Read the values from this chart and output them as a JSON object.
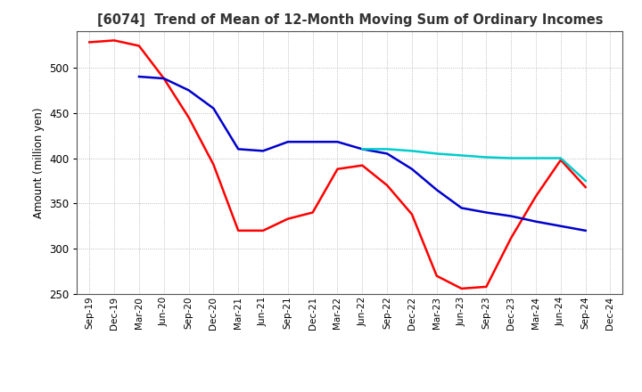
{
  "title": "[6074]  Trend of Mean of 12-Month Moving Sum of Ordinary Incomes",
  "ylabel": "Amount (million yen)",
  "ylim": [
    250,
    540
  ],
  "yticks": [
    250,
    300,
    350,
    400,
    450,
    500
  ],
  "bg_color": "#ffffff",
  "grid_color": "#aaaaaa",
  "line_colors": {
    "3Y": "#ff0000",
    "5Y": "#0000cc",
    "7Y": "#00cccc",
    "10Y": "#008000"
  },
  "x_labels": [
    "Sep-19",
    "Dec-19",
    "Mar-20",
    "Jun-20",
    "Sep-20",
    "Dec-20",
    "Mar-21",
    "Jun-21",
    "Sep-21",
    "Dec-21",
    "Mar-22",
    "Jun-22",
    "Sep-22",
    "Dec-22",
    "Mar-23",
    "Jun-23",
    "Sep-23",
    "Dec-23",
    "Mar-24",
    "Jun-24",
    "Sep-24",
    "Dec-24"
  ],
  "data_3Y": [
    528,
    530,
    524,
    488,
    445,
    393,
    320,
    320,
    333,
    340,
    388,
    392,
    370,
    338,
    270,
    256,
    258,
    312,
    358,
    398,
    368,
    null
  ],
  "data_5Y": [
    null,
    null,
    490,
    488,
    475,
    455,
    410,
    408,
    418,
    418,
    418,
    410,
    405,
    388,
    365,
    345,
    340,
    336,
    330,
    325,
    320,
    null
  ],
  "data_7Y": [
    null,
    null,
    null,
    null,
    null,
    null,
    null,
    null,
    null,
    null,
    null,
    410,
    410,
    408,
    405,
    403,
    401,
    400,
    400,
    400,
    375,
    null
  ],
  "data_10Y": [
    null,
    null,
    null,
    null,
    null,
    null,
    null,
    null,
    null,
    null,
    null,
    null,
    null,
    null,
    null,
    null,
    null,
    null,
    null,
    null,
    null,
    null
  ]
}
